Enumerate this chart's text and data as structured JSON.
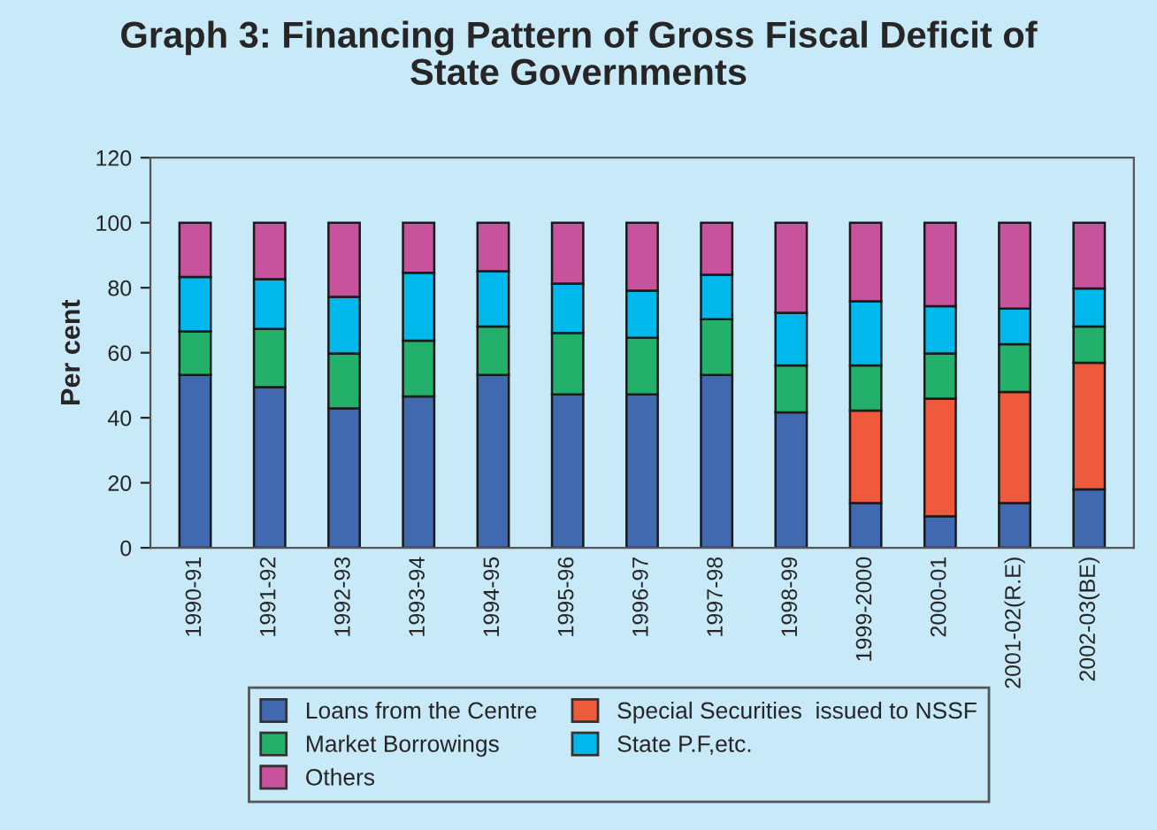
{
  "chart_data": {
    "type": "bar",
    "title": "Graph 3: Financing Pattern of Gross Fiscal Deficit of\nState Governments",
    "ylabel": "Per cent",
    "categories": [
      "1990-91",
      "1991-92",
      "1992-93",
      "1993-94",
      "1994-95",
      "1995-96",
      "1996-97",
      "1997-98",
      "1998-99",
      "1999-2000",
      "2000-01",
      "2001-02(R.E)",
      "2002-03(BE)"
    ],
    "stacked": true,
    "ylim": [
      0,
      120
    ],
    "yticks": [
      0,
      20,
      40,
      60,
      80,
      100,
      120
    ],
    "grid": false,
    "legend": "bottom",
    "series": [
      {
        "name": "Loans from the Centre",
        "color": "#4169b0",
        "values": [
          53.2,
          49.4,
          42.9,
          46.6,
          53.2,
          47.2,
          47.2,
          53.2,
          41.7,
          13.8,
          9.7,
          13.8,
          18.0
        ]
      },
      {
        "name": "Special Securities  issued to NSSF",
        "color": "#ef5a3c",
        "values": [
          null,
          null,
          null,
          null,
          null,
          null,
          null,
          null,
          null,
          28.4,
          36.2,
          34.1,
          38.9
        ]
      },
      {
        "name": "Market Borrowings",
        "color": "#22b06a",
        "values": [
          13.4,
          17.9,
          16.9,
          17.1,
          14.9,
          18.9,
          17.4,
          17.1,
          14.4,
          13.9,
          13.9,
          14.7,
          11.2
        ]
      },
      {
        "name": "State P.F,etc.",
        "color": "#00b8ec",
        "values": [
          16.7,
          15.3,
          17.4,
          20.9,
          17.0,
          15.2,
          14.5,
          13.7,
          16.2,
          19.7,
          14.5,
          11.0,
          11.7
        ]
      },
      {
        "name": "Others",
        "color": "#c6539c",
        "values": [
          16.7,
          17.4,
          22.8,
          15.4,
          14.9,
          18.7,
          20.9,
          16.0,
          27.7,
          24.2,
          25.7,
          26.4,
          20.2
        ]
      }
    ]
  }
}
